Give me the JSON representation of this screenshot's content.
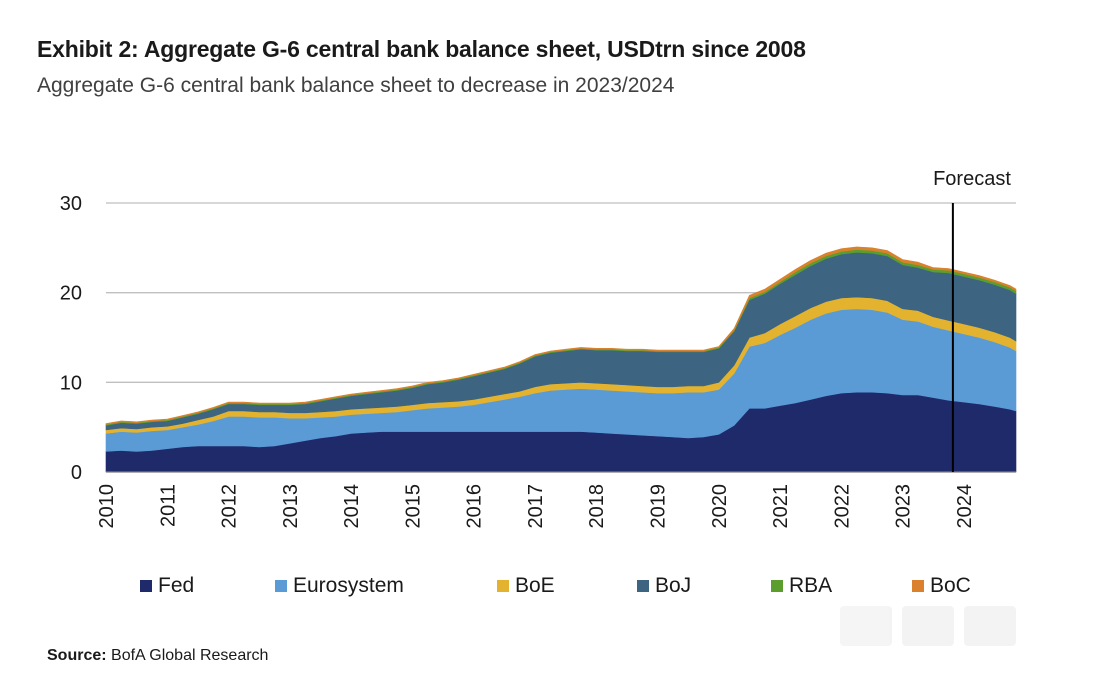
{
  "title": "Exhibit 2: Aggregate G-6 central bank balance sheet, USDtrn since 2008",
  "subtitle": "Aggregate G-6 central bank balance sheet to decrease in 2023/2024",
  "source_label": "Source:",
  "source_text": "BofA Global Research",
  "forecast_label": "Forecast",
  "chart_data": {
    "type": "area",
    "stacked": true,
    "title": "Exhibit 2: Aggregate G-6 central bank balance sheet, USDtrn since 2008",
    "subtitle": "Aggregate G-6 central bank balance sheet to decrease in 2023/2024",
    "xlabel": "",
    "ylabel": "",
    "ylim": [
      0,
      30
    ],
    "xlim": [
      2010.0,
      2024.85
    ],
    "yticks": [
      0,
      10,
      20,
      30
    ],
    "xticks": [
      "2010",
      "2011",
      "2012",
      "2013",
      "2014",
      "2015",
      "2016",
      "2017",
      "2018",
      "2019",
      "2020",
      "2021",
      "2022",
      "2023",
      "2024"
    ],
    "grid": true,
    "legend_position": "bottom",
    "forecast_start": 2023.82,
    "x": [
      2010.0,
      2010.25,
      2010.5,
      2010.75,
      2011.0,
      2011.25,
      2011.5,
      2011.75,
      2012.0,
      2012.25,
      2012.5,
      2012.75,
      2013.0,
      2013.25,
      2013.5,
      2013.75,
      2014.0,
      2014.25,
      2014.5,
      2014.75,
      2015.0,
      2015.25,
      2015.5,
      2015.75,
      2016.0,
      2016.25,
      2016.5,
      2016.75,
      2017.0,
      2017.25,
      2017.5,
      2017.75,
      2018.0,
      2018.25,
      2018.5,
      2018.75,
      2019.0,
      2019.25,
      2019.5,
      2019.75,
      2020.0,
      2020.25,
      2020.5,
      2020.75,
      2021.0,
      2021.25,
      2021.5,
      2021.75,
      2022.0,
      2022.25,
      2022.5,
      2022.75,
      2023.0,
      2023.25,
      2023.5,
      2023.75,
      2024.0,
      2024.25,
      2024.5,
      2024.75,
      2024.85
    ],
    "series": [
      {
        "name": "Fed",
        "color": "#1f2a6b",
        "values": [
          2.3,
          2.4,
          2.3,
          2.4,
          2.6,
          2.8,
          2.9,
          2.9,
          2.9,
          2.9,
          2.8,
          2.9,
          3.2,
          3.5,
          3.8,
          4.0,
          4.3,
          4.4,
          4.5,
          4.5,
          4.5,
          4.5,
          4.5,
          4.5,
          4.5,
          4.5,
          4.5,
          4.5,
          4.5,
          4.5,
          4.5,
          4.5,
          4.4,
          4.3,
          4.2,
          4.1,
          4.0,
          3.9,
          3.8,
          3.9,
          4.2,
          5.2,
          7.1,
          7.1,
          7.4,
          7.7,
          8.1,
          8.5,
          8.8,
          8.9,
          8.9,
          8.8,
          8.6,
          8.6,
          8.3,
          8.0,
          7.8,
          7.6,
          7.3,
          7.0,
          6.8
        ]
      },
      {
        "name": "Eurosystem",
        "color": "#5b9bd5",
        "values": [
          2.0,
          2.1,
          2.1,
          2.2,
          2.1,
          2.2,
          2.4,
          2.8,
          3.3,
          3.3,
          3.3,
          3.2,
          2.8,
          2.5,
          2.3,
          2.2,
          2.1,
          2.1,
          2.1,
          2.2,
          2.4,
          2.6,
          2.7,
          2.8,
          3.0,
          3.3,
          3.6,
          3.9,
          4.3,
          4.6,
          4.7,
          4.8,
          4.8,
          4.8,
          4.8,
          4.8,
          4.8,
          4.9,
          5.1,
          5.0,
          5.0,
          5.8,
          6.9,
          7.3,
          7.9,
          8.4,
          8.9,
          9.2,
          9.3,
          9.3,
          9.2,
          9.0,
          8.4,
          8.2,
          7.9,
          7.8,
          7.6,
          7.4,
          7.2,
          6.9,
          6.7
        ]
      },
      {
        "name": "BoE",
        "color": "#e3b330",
        "values": [
          0.4,
          0.4,
          0.4,
          0.4,
          0.4,
          0.4,
          0.5,
          0.5,
          0.6,
          0.6,
          0.6,
          0.6,
          0.6,
          0.6,
          0.6,
          0.6,
          0.6,
          0.6,
          0.6,
          0.6,
          0.6,
          0.6,
          0.6,
          0.6,
          0.6,
          0.6,
          0.6,
          0.6,
          0.7,
          0.7,
          0.7,
          0.7,
          0.7,
          0.7,
          0.7,
          0.7,
          0.7,
          0.7,
          0.7,
          0.7,
          0.8,
          0.9,
          1.0,
          1.1,
          1.2,
          1.3,
          1.3,
          1.3,
          1.3,
          1.3,
          1.3,
          1.3,
          1.2,
          1.2,
          1.1,
          1.1,
          1.1,
          1.1,
          1.1,
          1.1,
          1.1
        ]
      },
      {
        "name": "BoJ",
        "color": "#3d6480",
        "values": [
          0.5,
          0.6,
          0.6,
          0.6,
          0.6,
          0.7,
          0.7,
          0.8,
          0.8,
          0.8,
          0.8,
          0.8,
          0.9,
          1.0,
          1.2,
          1.4,
          1.5,
          1.6,
          1.7,
          1.8,
          1.9,
          2.1,
          2.2,
          2.4,
          2.6,
          2.7,
          2.8,
          3.1,
          3.4,
          3.5,
          3.6,
          3.7,
          3.7,
          3.8,
          3.8,
          3.9,
          3.9,
          3.9,
          3.8,
          3.8,
          3.8,
          3.8,
          4.2,
          4.4,
          4.5,
          4.6,
          4.7,
          4.8,
          4.9,
          5.0,
          5.0,
          5.0,
          4.9,
          4.8,
          5.0,
          5.3,
          5.3,
          5.3,
          5.3,
          5.3,
          5.3
        ]
      },
      {
        "name": "RBA",
        "color": "#5b9e2d",
        "values": [
          0.1,
          0.1,
          0.1,
          0.1,
          0.1,
          0.1,
          0.1,
          0.1,
          0.1,
          0.1,
          0.1,
          0.1,
          0.1,
          0.1,
          0.1,
          0.1,
          0.1,
          0.1,
          0.1,
          0.1,
          0.1,
          0.1,
          0.1,
          0.1,
          0.1,
          0.1,
          0.1,
          0.1,
          0.1,
          0.1,
          0.1,
          0.1,
          0.1,
          0.1,
          0.1,
          0.1,
          0.1,
          0.1,
          0.1,
          0.1,
          0.1,
          0.1,
          0.2,
          0.2,
          0.2,
          0.3,
          0.3,
          0.3,
          0.3,
          0.3,
          0.3,
          0.3,
          0.3,
          0.3,
          0.3,
          0.3,
          0.3,
          0.3,
          0.3,
          0.3,
          0.3
        ]
      },
      {
        "name": "BoC",
        "color": "#d9812c",
        "values": [
          0.1,
          0.1,
          0.1,
          0.1,
          0.1,
          0.1,
          0.1,
          0.1,
          0.1,
          0.1,
          0.1,
          0.1,
          0.1,
          0.1,
          0.1,
          0.1,
          0.1,
          0.1,
          0.1,
          0.1,
          0.1,
          0.1,
          0.1,
          0.1,
          0.1,
          0.1,
          0.1,
          0.1,
          0.1,
          0.1,
          0.1,
          0.1,
          0.1,
          0.1,
          0.1,
          0.1,
          0.1,
          0.1,
          0.1,
          0.1,
          0.1,
          0.2,
          0.3,
          0.3,
          0.3,
          0.3,
          0.3,
          0.3,
          0.3,
          0.3,
          0.3,
          0.3,
          0.3,
          0.3,
          0.2,
          0.2,
          0.2,
          0.2,
          0.2,
          0.2,
          0.2
        ]
      }
    ]
  }
}
